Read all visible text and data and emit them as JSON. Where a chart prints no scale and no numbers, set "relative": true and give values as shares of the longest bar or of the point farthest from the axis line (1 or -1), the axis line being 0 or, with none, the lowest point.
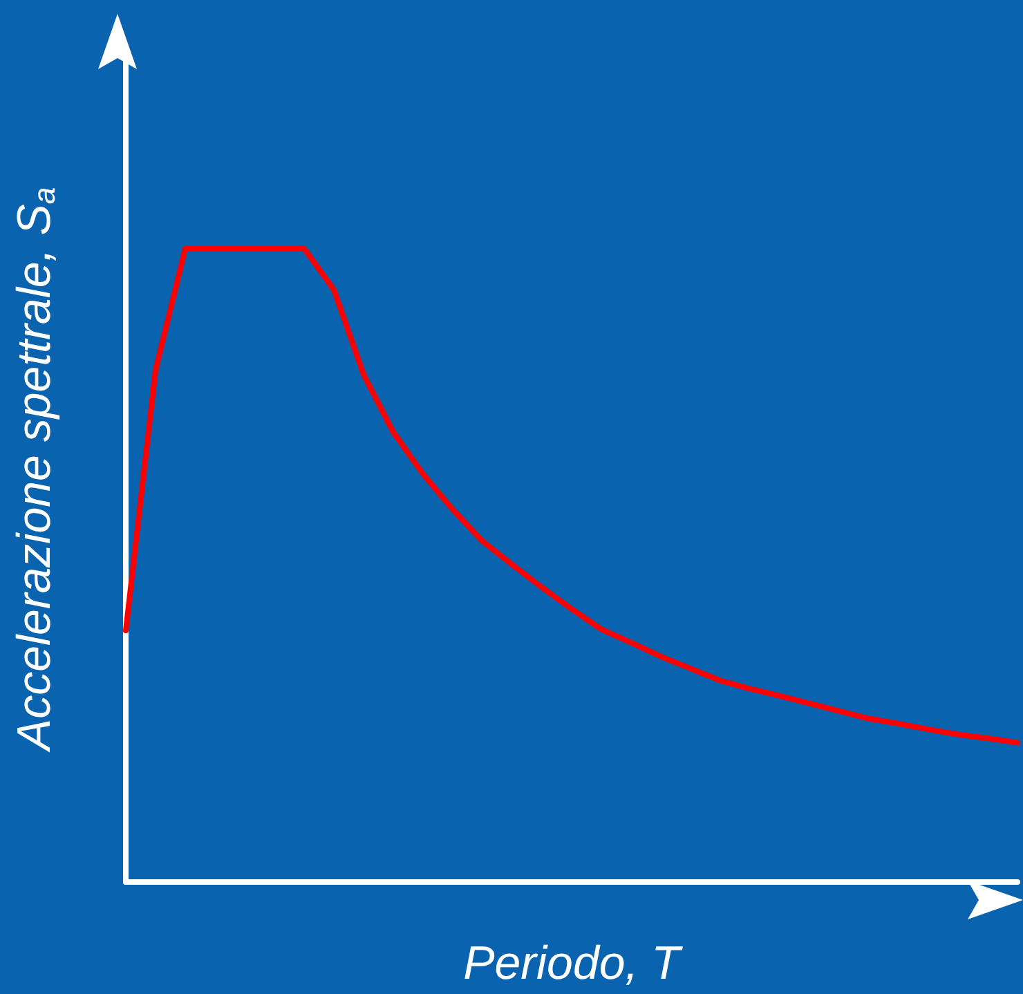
{
  "chart_data": {
    "type": "line",
    "relative": true,
    "xlabel": "Periodo, T",
    "ylabel": "Accelerazione spettrale, S$_{a}$",
    "categories": [
      null,
      null,
      null,
      null,
      null,
      null,
      null,
      null,
      null,
      null,
      null,
      null,
      null,
      null,
      null,
      null,
      null,
      null,
      null,
      null,
      null,
      null,
      null,
      null,
      null,
      null,
      null,
      null,
      null,
      null,
      null
    ],
    "series": [
      {
        "color": "#ff0000",
        "values": [
          0.397,
          0.808,
          1,
          1,
          1,
          1,
          1,
          0.935,
          0.801,
          0.71,
          0.644,
          0.588,
          0.538,
          0.501,
          0.465,
          0.431,
          0.399,
          0.378,
          0.356,
          0.337,
          0.318,
          0.305,
          0.294,
          0.282,
          0.27,
          0.258,
          0.25,
          0.241,
          0.233,
          0.227,
          0.22
        ]
      }
    ],
    "marker": "none",
    "line_style": "solid",
    "grid": false
  }
}
